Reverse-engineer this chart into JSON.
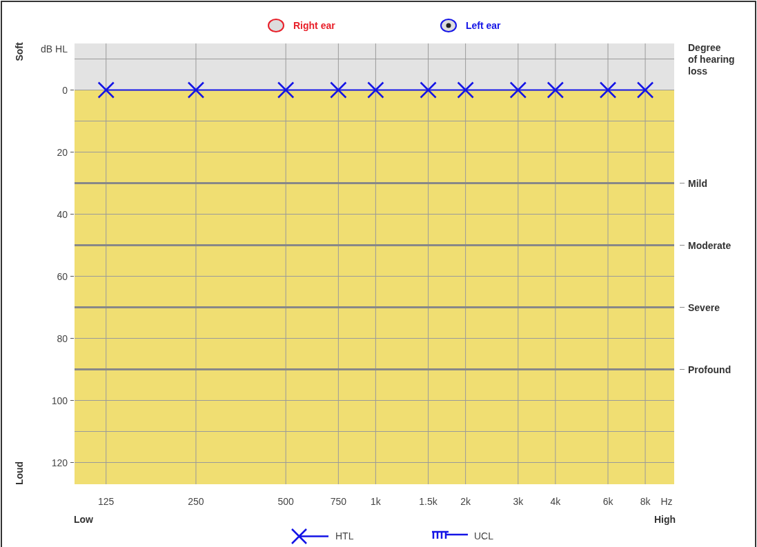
{
  "chart_data": {
    "type": "line",
    "ylabel": "dB HL",
    "xlabel": "Hz",
    "y2label": "Degree of hearing loss",
    "log": "x",
    "grid": true,
    "legend": "top",
    "line_style": "solid",
    "xlim": [
      98,
      10000
    ],
    "xticks": [
      125,
      250,
      500,
      750,
      {
        "value": 1000,
        "label": "1k"
      },
      {
        "value": 1500,
        "label": "1.5k"
      },
      {
        "value": 2000,
        "label": "2k"
      },
      {
        "value": 3000,
        "label": "3k"
      },
      {
        "value": 4000,
        "label": "4k"
      },
      {
        "value": 6000,
        "label": "6k"
      },
      {
        "value": 8000,
        "label": "8k"
      }
    ],
    "ylim": [
      127,
      -15
    ],
    "yticks": [
      {
        "value": -10,
        "label": null
      },
      0,
      {
        "value": 10,
        "label": null
      },
      20,
      {
        "value": 30,
        "label": null
      },
      40,
      {
        "value": 50,
        "label": null
      },
      60,
      {
        "value": 70,
        "label": null
      },
      80,
      {
        "value": 90,
        "label": null
      },
      100,
      {
        "value": 110,
        "label": null
      },
      120
    ],
    "x": [
      125,
      250,
      500,
      750,
      1000,
      1500,
      2000,
      3000,
      4000,
      6000,
      8000
    ],
    "series": [
      {
        "name": "Right ear",
        "color": "#e8202a",
        "marker": "circle",
        "values": [
          null,
          null,
          null,
          null,
          null,
          null,
          null,
          null,
          null,
          null,
          null
        ]
      },
      {
        "name": "Left ear",
        "color": "#1414e6",
        "marker": "cross",
        "values": [
          0,
          0,
          0,
          0,
          0,
          0,
          0,
          0,
          0,
          0,
          0
        ]
      }
    ],
    "bands": [
      {
        "axis": "y",
        "from": -15,
        "to": 0,
        "color": "#e3e3e3"
      },
      {
        "axis": "y",
        "from": 0,
        "to": 127,
        "color": "#f0de72"
      }
    ],
    "ref_lines": [
      {
        "axis": "y",
        "value": 30,
        "label": "Mild",
        "color": "#888888"
      },
      {
        "axis": "y",
        "value": 50,
        "label": "Moderate",
        "color": "#888888"
      },
      {
        "axis": "y",
        "value": 70,
        "label": "Severe",
        "color": "#888888"
      },
      {
        "axis": "y",
        "value": 90,
        "label": "Profound",
        "color": "#888888"
      }
    ],
    "annotations": [
      "Soft",
      "Loud",
      "Low",
      "High",
      "HTL",
      "UCL"
    ]
  }
}
